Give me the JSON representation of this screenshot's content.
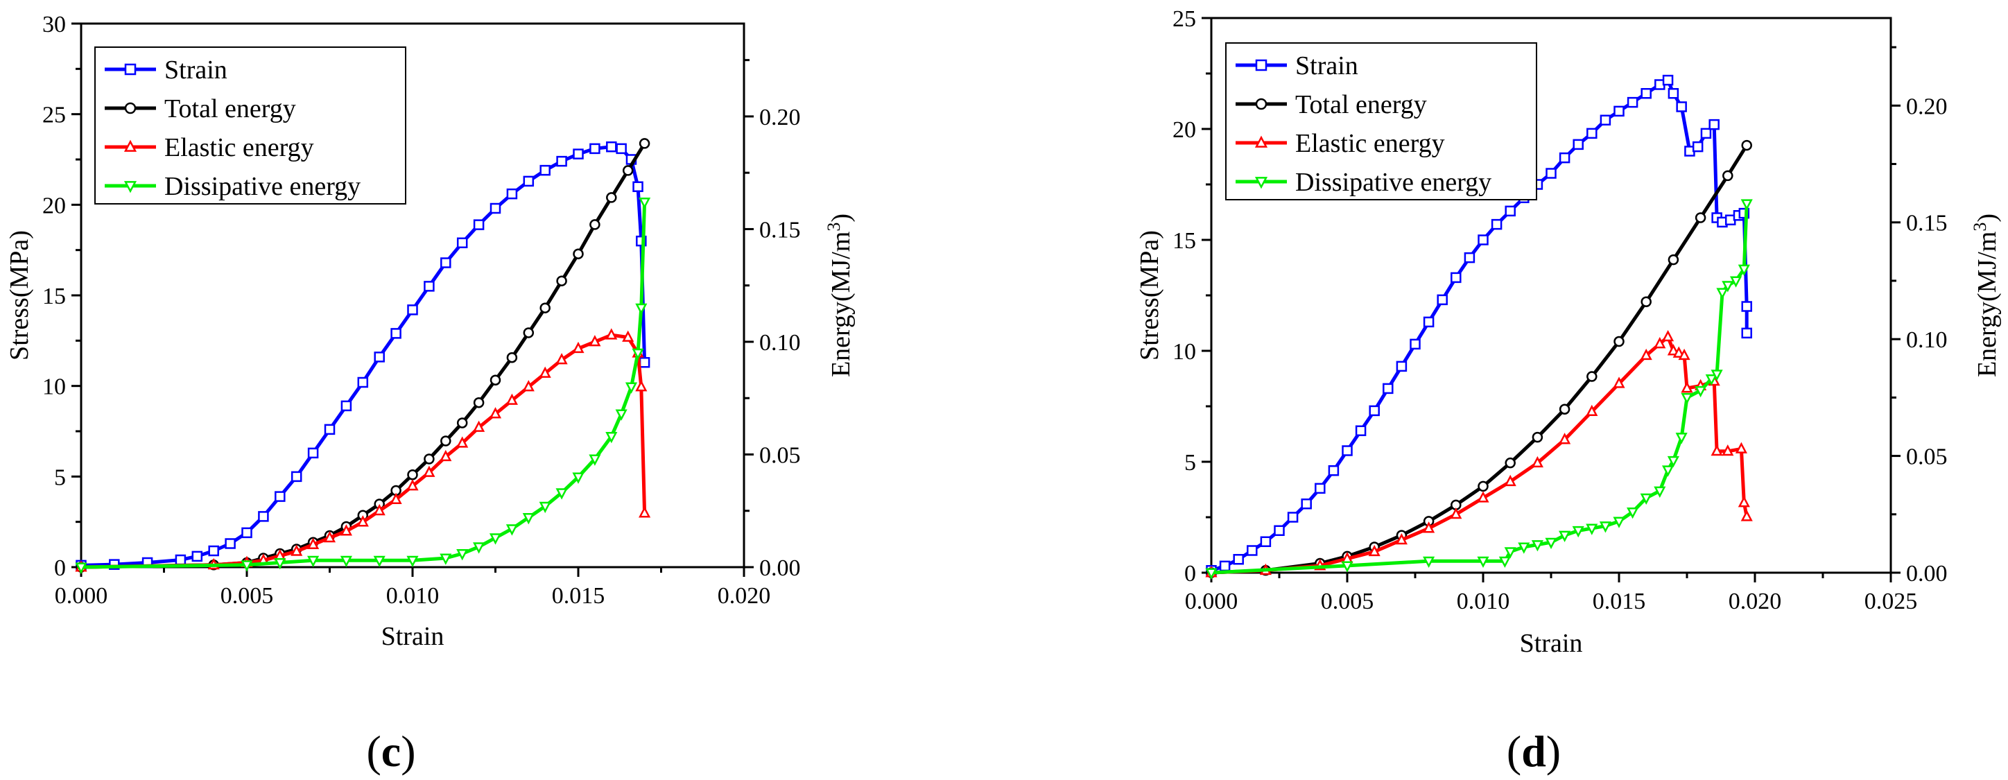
{
  "colors": {
    "strain": "#0000ff",
    "total": "#000000",
    "elastic": "#ff0000",
    "dissipative": "#00ee00"
  },
  "chart_data": [
    {
      "panel": "c",
      "type": "line",
      "xlabel": "Strain",
      "ylabel": "Stress(MPa)",
      "y2label": "Energy(MJ/m3)",
      "xlim": [
        0,
        0.02
      ],
      "ylim": [
        0,
        30
      ],
      "y2lim": [
        0,
        0.2412
      ],
      "xticks": [
        "0.000",
        "0.005",
        "0.010",
        "0.015",
        "0.020"
      ],
      "yticks": [
        "0",
        "5",
        "10",
        "15",
        "20",
        "25",
        "30"
      ],
      "y2ticks": [
        "0.00",
        "0.05",
        "0.10",
        "0.15",
        "0.20"
      ],
      "legend_position": "top-left",
      "series": [
        {
          "name": "Strain",
          "axis": "left",
          "marker": "square",
          "color_key": "strain",
          "x": [
            0,
            0.001,
            0.002,
            0.003,
            0.0035,
            0.004,
            0.0045,
            0.005,
            0.0055,
            0.006,
            0.0065,
            0.007,
            0.0075,
            0.008,
            0.0085,
            0.009,
            0.0095,
            0.01,
            0.0105,
            0.011,
            0.0115,
            0.012,
            0.0125,
            0.013,
            0.0135,
            0.014,
            0.0145,
            0.015,
            0.0155,
            0.016,
            0.0163,
            0.0166,
            0.0168,
            0.0169,
            0.017
          ],
          "y": [
            0.1,
            0.15,
            0.25,
            0.4,
            0.6,
            0.9,
            1.3,
            1.9,
            2.8,
            3.9,
            5.0,
            6.3,
            7.6,
            8.9,
            10.2,
            11.6,
            12.9,
            14.2,
            15.5,
            16.8,
            17.9,
            18.9,
            19.8,
            20.6,
            21.3,
            21.9,
            22.4,
            22.8,
            23.1,
            23.2,
            23.1,
            22.5,
            21.0,
            18.0,
            11.3
          ]
        },
        {
          "name": "Total energy",
          "axis": "right",
          "marker": "circle",
          "color_key": "total",
          "x": [
            0,
            0.004,
            0.005,
            0.0055,
            0.006,
            0.0065,
            0.007,
            0.0075,
            0.008,
            0.0085,
            0.009,
            0.0095,
            0.01,
            0.0105,
            0.011,
            0.0115,
            0.012,
            0.0125,
            0.013,
            0.0135,
            0.014,
            0.0145,
            0.015,
            0.0155,
            0.016,
            0.0165,
            0.017
          ],
          "y": [
            0.0,
            0.001,
            0.002,
            0.004,
            0.006,
            0.008,
            0.011,
            0.014,
            0.018,
            0.023,
            0.028,
            0.034,
            0.041,
            0.048,
            0.056,
            0.064,
            0.073,
            0.083,
            0.093,
            0.104,
            0.115,
            0.127,
            0.139,
            0.152,
            0.164,
            0.176,
            0.188
          ]
        },
        {
          "name": "Elastic energy",
          "axis": "right",
          "marker": "triangle-up",
          "color_key": "elastic",
          "x": [
            0,
            0.004,
            0.005,
            0.0055,
            0.006,
            0.0065,
            0.007,
            0.0075,
            0.008,
            0.0085,
            0.009,
            0.0095,
            0.01,
            0.0105,
            0.011,
            0.0115,
            0.012,
            0.0125,
            0.013,
            0.0135,
            0.014,
            0.0145,
            0.015,
            0.0155,
            0.016,
            0.0165,
            0.0168,
            0.0169,
            0.017
          ],
          "y": [
            0.0,
            0.001,
            0.002,
            0.003,
            0.005,
            0.007,
            0.01,
            0.013,
            0.016,
            0.02,
            0.025,
            0.03,
            0.036,
            0.042,
            0.049,
            0.055,
            0.062,
            0.068,
            0.074,
            0.08,
            0.086,
            0.092,
            0.097,
            0.1,
            0.103,
            0.102,
            0.095,
            0.08,
            0.024
          ]
        },
        {
          "name": "Dissipative energy",
          "axis": "right",
          "marker": "triangle-down",
          "color_key": "dissipative",
          "x": [
            0,
            0.005,
            0.006,
            0.007,
            0.008,
            0.009,
            0.01,
            0.011,
            0.0115,
            0.012,
            0.0125,
            0.013,
            0.0135,
            0.014,
            0.0145,
            0.015,
            0.0155,
            0.016,
            0.0163,
            0.0166,
            0.0168,
            0.0169,
            0.017
          ],
          "y": [
            0.0,
            0.001,
            0.002,
            0.003,
            0.003,
            0.003,
            0.003,
            0.004,
            0.006,
            0.009,
            0.013,
            0.017,
            0.022,
            0.027,
            0.033,
            0.04,
            0.048,
            0.058,
            0.068,
            0.08,
            0.095,
            0.115,
            0.162
          ]
        }
      ]
    },
    {
      "panel": "d",
      "type": "line",
      "xlabel": "Strain",
      "ylabel": "Stress(MPa)",
      "y2label": "Energy(MJ/m3)",
      "xlim": [
        0,
        0.025
      ],
      "ylim": [
        0,
        25
      ],
      "y2lim": [
        0,
        0.2375
      ],
      "xticks": [
        "0.000",
        "0.005",
        "0.010",
        "0.015",
        "0.020",
        "0.025"
      ],
      "yticks": [
        "0",
        "5",
        "10",
        "15",
        "20",
        "25"
      ],
      "y2ticks": [
        "0.00",
        "0.05",
        "0.10",
        "0.15",
        "0.20"
      ],
      "legend_position": "top-left",
      "series": [
        {
          "name": "Strain",
          "axis": "left",
          "marker": "square",
          "color_key": "strain",
          "x": [
            0,
            0.0005,
            0.001,
            0.0015,
            0.002,
            0.0025,
            0.003,
            0.0035,
            0.004,
            0.0045,
            0.005,
            0.0055,
            0.006,
            0.0065,
            0.007,
            0.0075,
            0.008,
            0.0085,
            0.009,
            0.0095,
            0.01,
            0.0105,
            0.011,
            0.0115,
            0.012,
            0.0125,
            0.013,
            0.0135,
            0.014,
            0.0145,
            0.015,
            0.0155,
            0.016,
            0.0165,
            0.0168,
            0.017,
            0.0173,
            0.0176,
            0.0179,
            0.0182,
            0.0185,
            0.0186,
            0.0188,
            0.0191,
            0.0194,
            0.0196,
            0.0197,
            0.0197
          ],
          "y": [
            0.1,
            0.3,
            0.6,
            1.0,
            1.4,
            1.9,
            2.5,
            3.1,
            3.8,
            4.6,
            5.5,
            6.4,
            7.3,
            8.3,
            9.3,
            10.3,
            11.3,
            12.3,
            13.3,
            14.2,
            15.0,
            15.7,
            16.3,
            16.9,
            17.5,
            18.0,
            18.7,
            19.3,
            19.8,
            20.4,
            20.8,
            21.2,
            21.6,
            22.0,
            22.2,
            21.6,
            21.0,
            19.0,
            19.2,
            19.8,
            20.2,
            16.0,
            15.8,
            15.9,
            16.1,
            16.2,
            12.0,
            10.8
          ]
        },
        {
          "name": "Total energy",
          "axis": "right",
          "marker": "circle",
          "color_key": "total",
          "x": [
            0,
            0.002,
            0.004,
            0.005,
            0.006,
            0.007,
            0.008,
            0.009,
            0.01,
            0.011,
            0.012,
            0.013,
            0.014,
            0.015,
            0.016,
            0.017,
            0.018,
            0.019,
            0.0197
          ],
          "y": [
            0.0,
            0.001,
            0.004,
            0.007,
            0.011,
            0.016,
            0.022,
            0.029,
            0.037,
            0.047,
            0.058,
            0.07,
            0.084,
            0.099,
            0.116,
            0.134,
            0.152,
            0.17,
            0.183
          ]
        },
        {
          "name": "Elastic energy",
          "axis": "right",
          "marker": "triangle-up",
          "color_key": "elastic",
          "x": [
            0,
            0.002,
            0.004,
            0.005,
            0.006,
            0.007,
            0.008,
            0.009,
            0.01,
            0.011,
            0.012,
            0.013,
            0.014,
            0.015,
            0.016,
            0.0165,
            0.0168,
            0.017,
            0.0172,
            0.0174,
            0.0175,
            0.018,
            0.0185,
            0.0186,
            0.019,
            0.0195,
            0.0196,
            0.0197
          ],
          "y": [
            0.0,
            0.001,
            0.003,
            0.006,
            0.009,
            0.014,
            0.019,
            0.025,
            0.032,
            0.039,
            0.047,
            0.057,
            0.069,
            0.081,
            0.093,
            0.098,
            0.101,
            0.095,
            0.094,
            0.093,
            0.079,
            0.08,
            0.082,
            0.052,
            0.052,
            0.053,
            0.03,
            0.024
          ]
        },
        {
          "name": "Dissipative energy",
          "axis": "right",
          "marker": "triangle-down",
          "color_key": "dissipative",
          "x": [
            0,
            0.005,
            0.008,
            0.01,
            0.0108,
            0.011,
            0.0115,
            0.012,
            0.0125,
            0.013,
            0.0135,
            0.014,
            0.0145,
            0.015,
            0.0155,
            0.016,
            0.0165,
            0.0168,
            0.017,
            0.0173,
            0.0175,
            0.018,
            0.0184,
            0.0186,
            0.0188,
            0.019,
            0.0193,
            0.0196,
            0.0197
          ],
          "y": [
            0.0,
            0.003,
            0.005,
            0.005,
            0.005,
            0.009,
            0.011,
            0.012,
            0.013,
            0.016,
            0.018,
            0.019,
            0.02,
            0.022,
            0.026,
            0.032,
            0.035,
            0.044,
            0.048,
            0.058,
            0.075,
            0.078,
            0.083,
            0.085,
            0.12,
            0.123,
            0.125,
            0.13,
            0.158
          ]
        }
      ]
    }
  ]
}
